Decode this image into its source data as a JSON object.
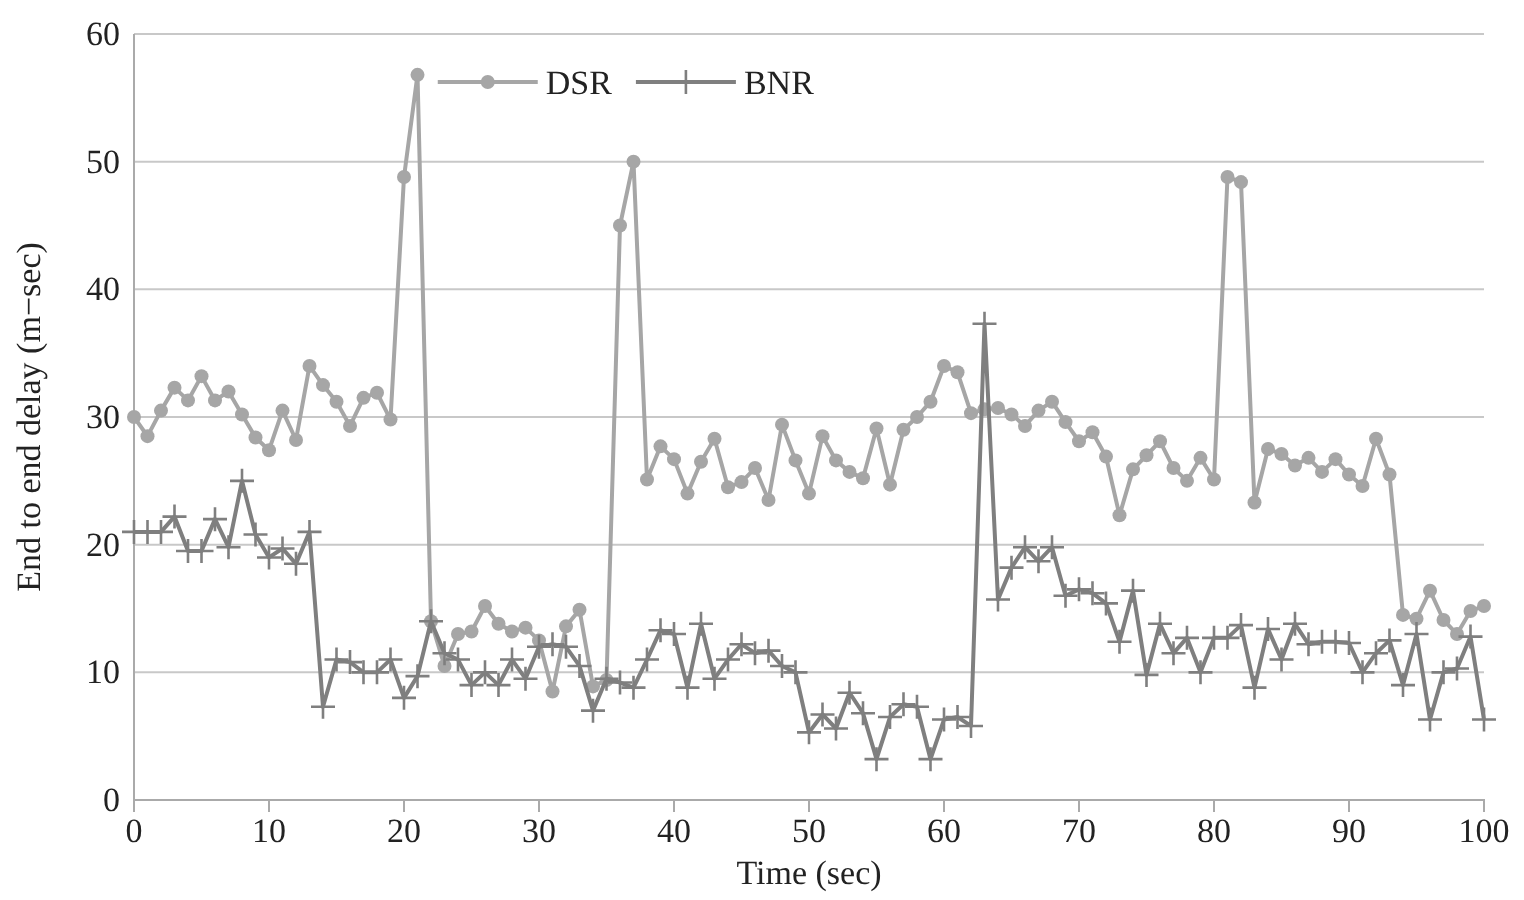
{
  "chart_data": {
    "type": "line",
    "xlabel": "Time (sec)",
    "ylabel": "End to end delay (m−sec)",
    "xlim": [
      0,
      100
    ],
    "xticks": [
      0,
      10,
      20,
      30,
      40,
      50,
      60,
      70,
      80,
      90,
      100
    ],
    "ylim": [
      0,
      60
    ],
    "yticks": [
      0,
      10,
      20,
      30,
      40,
      50,
      60
    ],
    "grid": "y",
    "legend": "top",
    "line_style": "solid",
    "series": [
      {
        "name": "DSR",
        "color": "#a6a6a6",
        "marker": "circle",
        "values": [
          30,
          28.5,
          30.5,
          32.3,
          31.3,
          33.2,
          31.3,
          32,
          30.2,
          28.4,
          27.4,
          30.5,
          28.2,
          34,
          32.5,
          31.2,
          29.3,
          31.5,
          31.9,
          29.8,
          48.8,
          56.8,
          14,
          10.5,
          13,
          13.2,
          15.2,
          13.8,
          13.2,
          13.5,
          12.5,
          8.5,
          13.6,
          14.9,
          8.9,
          9.4,
          45,
          50,
          25.1,
          27.7,
          26.7,
          24,
          26.5,
          28.3,
          24.5,
          24.9,
          26,
          23.5,
          29.4,
          26.6,
          24,
          28.5,
          26.6,
          25.7,
          25.2,
          29.1,
          24.7,
          29,
          30,
          31.2,
          34,
          33.5,
          30.3,
          30.6,
          30.7,
          30.2,
          29.3,
          30.5,
          31.2,
          29.6,
          28.1,
          28.8,
          26.9,
          22.3,
          25.9,
          27,
          28.1,
          26,
          25,
          26.8,
          25.1,
          48.8,
          48.4,
          23.3,
          27.5,
          27.1,
          26.2,
          26.8,
          25.7,
          26.7,
          25.5,
          24.6,
          28.3,
          25.5,
          14.5,
          14.2,
          16.4,
          14.1,
          13,
          14.8,
          15.2
        ]
      },
      {
        "name": "BNR",
        "color": "#7f7f7f",
        "marker": "cross",
        "values": [
          21,
          21,
          21,
          22.2,
          19.5,
          19.5,
          22,
          19.8,
          25,
          20.8,
          19,
          19.7,
          18.5,
          21,
          7.3,
          11,
          10.8,
          10,
          10,
          11,
          8,
          9.7,
          14,
          11.5,
          11,
          9,
          10,
          9,
          11,
          9.5,
          12,
          12.2,
          12,
          10.5,
          7,
          9.5,
          9.2,
          8.8,
          11,
          13.3,
          13,
          8.8,
          13.8,
          9.5,
          11,
          12.2,
          11.5,
          11.7,
          10.5,
          10,
          5.3,
          6.7,
          5.6,
          8.4,
          6.8,
          3.2,
          6.5,
          7.5,
          7.3,
          3.2,
          6.3,
          6.5,
          5.8,
          37.3,
          15.7,
          18.2,
          19.8,
          18.7,
          19.8,
          16,
          16.5,
          16.2,
          15.4,
          12.4,
          16.4,
          9.8,
          13.8,
          11.5,
          12.7,
          10,
          12.7,
          12.7,
          13.7,
          8.8,
          13.4,
          11,
          13.8,
          12.2,
          12.4,
          12.4,
          12.3,
          10,
          11.5,
          12.5,
          9,
          13,
          6.3,
          10,
          10.3,
          12.8,
          6.3
        ]
      }
    ],
    "x": [
      0,
      1,
      2,
      3,
      4,
      5,
      6,
      7,
      8,
      9,
      10,
      11,
      12,
      13,
      14,
      15,
      16,
      17,
      18,
      19,
      20,
      21,
      22,
      23,
      24,
      25,
      26,
      27,
      28,
      29,
      30,
      31,
      32,
      33,
      34,
      35,
      36,
      37,
      38,
      39,
      40,
      41,
      42,
      43,
      44,
      45,
      46,
      47,
      48,
      49,
      50,
      51,
      52,
      53,
      54,
      55,
      56,
      57,
      58,
      59,
      60,
      61,
      62,
      63,
      64,
      65,
      66,
      67,
      68,
      69,
      70,
      71,
      72,
      73,
      74,
      75,
      76,
      77,
      78,
      79,
      80,
      81,
      82,
      83,
      84,
      85,
      86,
      87,
      88,
      89,
      90,
      91,
      92,
      93,
      94,
      95,
      96,
      97,
      98,
      99,
      100
    ]
  }
}
